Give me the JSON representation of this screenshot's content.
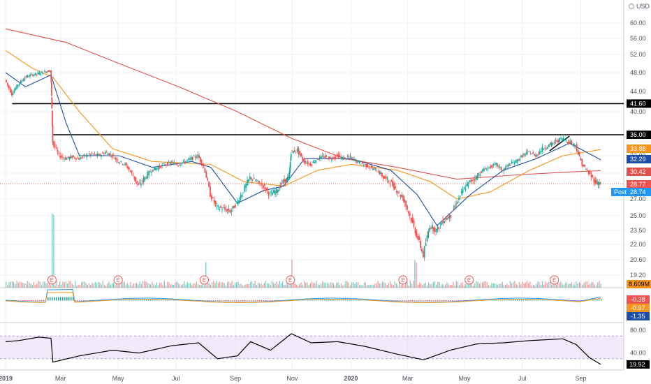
{
  "header": {
    "currency": "USD"
  },
  "colors": {
    "up": "#26a69a",
    "down": "#ef5350",
    "ma_fast": "#1e4fa8",
    "ma_mid": "#f7941d",
    "ma_slow": "#e0504a",
    "rsi": "#000000",
    "rsi_band": "#e8dcf7",
    "grid": "#eef0f3",
    "volume_ma": "#f7941d",
    "last_price": "#ef5350",
    "post_tag": "#2196f3"
  },
  "chart_data": [
    {
      "type": "candlestick",
      "pane": "price",
      "price_scale": [
        "60.00",
        "56.00",
        "52.00",
        "48.00",
        "44.00",
        "40.00",
        "36.00",
        "33.00",
        "30.00",
        "27.00",
        "25.00",
        "23.50",
        "22.00",
        "20.60",
        "19.20"
      ],
      "x_labels": [
        "2019",
        "Mar",
        "May",
        "Jul",
        "Sep",
        "Nov",
        "2020",
        "Mar",
        "May",
        "Jul",
        "Sep"
      ],
      "horizontal_levels": [
        {
          "label": "41.60",
          "value": 41.6
        },
        {
          "label": "36.00",
          "value": 36.0
        }
      ],
      "price_tags": [
        {
          "label": "33.88",
          "series": "ma_mid"
        },
        {
          "label": "32.29",
          "series": "ma_fast"
        },
        {
          "label": "30.42",
          "series": "ma_slow"
        },
        {
          "label": "28.77",
          "series": "last"
        },
        {
          "label": "28.74",
          "series": "post",
          "prefix": "Post"
        }
      ],
      "earnings_marker": "E",
      "earnings_dates": [
        "2019-02-20",
        "2019-05-01",
        "2019-07-31",
        "2019-10-30",
        "2020-02-26",
        "2020-05-06",
        "2020-08-04"
      ],
      "closes": [
        [
          [
            "2019-01-02",
            46.5
          ],
          [
            "2019-01-09",
            43.5
          ],
          [
            "2019-01-16",
            45.5
          ],
          [
            "2019-01-23",
            47.0
          ],
          [
            "2019-01-30",
            47.5
          ],
          [
            "2019-02-06",
            47.8
          ],
          [
            "2019-02-13",
            48.2
          ],
          [
            "2019-02-19",
            48.5
          ],
          [
            "2019-02-21",
            35.0
          ],
          [
            "2019-02-28",
            33.0
          ],
          [
            "2019-03-07",
            32.5
          ],
          [
            "2019-03-14",
            32.8
          ],
          [
            "2019-03-21",
            32.5
          ],
          [
            "2019-03-28",
            33.0
          ],
          [
            "2019-04-04",
            33.2
          ],
          [
            "2019-04-11",
            33.0
          ],
          [
            "2019-04-18",
            33.5
          ],
          [
            "2019-04-25",
            33.0
          ],
          [
            "2019-05-02",
            32.0
          ],
          [
            "2019-05-09",
            31.5
          ],
          [
            "2019-05-16",
            30.0
          ],
          [
            "2019-05-23",
            28.5
          ],
          [
            "2019-05-30",
            29.5
          ],
          [
            "2019-06-06",
            30.5
          ],
          [
            "2019-06-13",
            31.0
          ],
          [
            "2019-06-20",
            31.5
          ],
          [
            "2019-06-27",
            31.8
          ],
          [
            "2019-07-04",
            31.5
          ],
          [
            "2019-07-11",
            32.0
          ],
          [
            "2019-07-18",
            32.5
          ],
          [
            "2019-07-25",
            33.0
          ],
          [
            "2019-07-31",
            31.0
          ],
          [
            "2019-08-07",
            27.5
          ],
          [
            "2019-08-14",
            26.0
          ],
          [
            "2019-08-21",
            25.8
          ],
          [
            "2019-08-28",
            25.5
          ],
          [
            "2019-09-04",
            26.5
          ],
          [
            "2019-09-11",
            28.0
          ],
          [
            "2019-09-18",
            29.5
          ],
          [
            "2019-09-25",
            29.0
          ],
          [
            "2019-10-02",
            28.5
          ],
          [
            "2019-10-09",
            27.5
          ],
          [
            "2019-10-16",
            28.0
          ],
          [
            "2019-10-23",
            29.0
          ],
          [
            "2019-10-29",
            29.5
          ],
          [
            "2019-10-31",
            33.5
          ],
          [
            "2019-11-07",
            33.8
          ],
          [
            "2019-11-14",
            32.0
          ],
          [
            "2019-11-21",
            31.5
          ],
          [
            "2019-11-28",
            32.5
          ],
          [
            "2019-12-05",
            32.8
          ],
          [
            "2019-12-12",
            32.5
          ],
          [
            "2019-12-19",
            33.0
          ],
          [
            "2019-12-26",
            32.5
          ],
          [
            "2020-01-02",
            32.8
          ],
          [
            "2020-01-09",
            32.0
          ],
          [
            "2020-01-16",
            31.5
          ],
          [
            "2020-01-23",
            31.0
          ],
          [
            "2020-01-30",
            30.5
          ],
          [
            "2020-02-06",
            29.5
          ],
          [
            "2020-02-13",
            29.0
          ],
          [
            "2020-02-20",
            28.0
          ],
          [
            "2020-02-27",
            27.0
          ],
          [
            "2020-03-05",
            25.0
          ],
          [
            "2020-03-12",
            23.0
          ],
          [
            "2020-03-19",
            21.0
          ],
          [
            "2020-03-26",
            24.0
          ],
          [
            "2020-04-02",
            23.5
          ],
          [
            "2020-04-09",
            24.5
          ],
          [
            "2020-04-16",
            25.0
          ],
          [
            "2020-04-23",
            26.5
          ],
          [
            "2020-04-30",
            28.0
          ],
          [
            "2020-05-07",
            29.0
          ],
          [
            "2020-05-14",
            29.5
          ],
          [
            "2020-05-21",
            30.5
          ],
          [
            "2020-05-28",
            31.0
          ],
          [
            "2020-06-04",
            31.5
          ],
          [
            "2020-06-11",
            30.5
          ],
          [
            "2020-06-18",
            31.5
          ],
          [
            "2020-06-25",
            32.0
          ],
          [
            "2020-07-02",
            33.0
          ],
          [
            "2020-07-09",
            33.5
          ],
          [
            "2020-07-16",
            33.0
          ],
          [
            "2020-07-23",
            34.0
          ],
          [
            "2020-07-30",
            34.5
          ],
          [
            "2020-08-06",
            35.0
          ],
          [
            "2020-08-13",
            35.5
          ],
          [
            "2020-08-20",
            35.0
          ],
          [
            "2020-08-27",
            34.5
          ],
          [
            "2020-09-03",
            31.5
          ],
          [
            "2020-09-10",
            30.0
          ],
          [
            "2020-09-17",
            29.0
          ],
          [
            "2020-09-22",
            28.77
          ]
        ]
      ],
      "ma_fast": [
        [
          [
            "2019-01-02",
            48.0
          ],
          [
            "2019-01-23",
            45.0
          ],
          [
            "2019-02-19",
            47.5
          ],
          [
            "2019-03-07",
            38.0
          ],
          [
            "2019-03-21",
            33.0
          ],
          [
            "2019-05-02",
            33.0
          ],
          [
            "2019-06-06",
            31.0
          ],
          [
            "2019-07-18",
            32.0
          ],
          [
            "2019-08-07",
            31.0
          ],
          [
            "2019-09-04",
            26.5
          ],
          [
            "2019-10-02",
            28.0
          ],
          [
            "2019-10-23",
            28.5
          ],
          [
            "2019-11-14",
            32.5
          ],
          [
            "2020-01-02",
            32.5
          ],
          [
            "2020-02-13",
            30.5
          ],
          [
            "2020-03-12",
            27.5
          ],
          [
            "2020-04-02",
            24.0
          ],
          [
            "2020-05-07",
            27.5
          ],
          [
            "2020-06-11",
            30.5
          ],
          [
            "2020-07-16",
            32.5
          ],
          [
            "2020-08-20",
            34.8
          ],
          [
            "2020-09-22",
            32.29
          ]
        ]
      ],
      "ma_mid": [
        [
          [
            "2019-01-02",
            53.0
          ],
          [
            "2019-01-30",
            49.0
          ],
          [
            "2019-02-21",
            47.0
          ],
          [
            "2019-03-21",
            40.0
          ],
          [
            "2019-04-25",
            34.0
          ],
          [
            "2019-06-06",
            32.0
          ],
          [
            "2019-08-07",
            31.5
          ],
          [
            "2019-09-11",
            29.0
          ],
          [
            "2019-10-23",
            28.5
          ],
          [
            "2019-11-28",
            30.5
          ],
          [
            "2020-01-02",
            31.5
          ],
          [
            "2020-02-20",
            30.5
          ],
          [
            "2020-03-26",
            29.0
          ],
          [
            "2020-04-23",
            27.0
          ],
          [
            "2020-05-28",
            27.8
          ],
          [
            "2020-07-09",
            30.5
          ],
          [
            "2020-08-13",
            33.0
          ],
          [
            "2020-09-22",
            33.88
          ]
        ]
      ],
      "ma_slow": [
        [
          [
            "2019-01-02",
            58.5
          ],
          [
            "2019-03-07",
            55.0
          ],
          [
            "2019-05-02",
            50.0
          ],
          [
            "2019-07-04",
            45.0
          ],
          [
            "2019-09-04",
            40.0
          ],
          [
            "2019-10-31",
            35.5
          ],
          [
            "2019-12-26",
            32.5
          ],
          [
            "2020-02-20",
            31.0
          ],
          [
            "2020-04-23",
            29.3
          ],
          [
            "2020-06-25",
            29.8
          ],
          [
            "2020-08-20",
            30.2
          ],
          [
            "2020-09-22",
            30.42
          ]
        ]
      ]
    },
    {
      "type": "bar",
      "pane": "volume",
      "ticks": [],
      "last_value_label": "8.609M",
      "note": "volume histogram; tallest spike at 2019-02-21 earnings gap"
    },
    {
      "type": "line",
      "pane": "macd",
      "last_values": [
        {
          "label": "-0.38",
          "series": "histogram"
        },
        {
          "label": "-0.97",
          "series": "signal"
        },
        {
          "label": "-1.35",
          "series": "macd"
        }
      ]
    },
    {
      "type": "line",
      "pane": "rsi",
      "ticks": [
        "80.00",
        "40.00"
      ],
      "band": [
        30,
        70
      ],
      "last_value_label": "19.92",
      "values": [
        [
          "2019-01-02",
          60
        ],
        [
          "2019-01-16",
          62
        ],
        [
          "2019-02-06",
          68
        ],
        [
          "2019-02-19",
          66
        ],
        [
          "2019-02-21",
          24
        ],
        [
          "2019-03-21",
          35
        ],
        [
          "2019-04-25",
          45
        ],
        [
          "2019-05-23",
          40
        ],
        [
          "2019-06-27",
          53
        ],
        [
          "2019-07-25",
          58
        ],
        [
          "2019-08-14",
          30
        ],
        [
          "2019-09-04",
          35
        ],
        [
          "2019-09-18",
          60
        ],
        [
          "2019-10-09",
          45
        ],
        [
          "2019-10-31",
          74
        ],
        [
          "2019-11-21",
          58
        ],
        [
          "2019-12-19",
          60
        ],
        [
          "2020-01-16",
          52
        ],
        [
          "2020-02-20",
          38
        ],
        [
          "2020-03-19",
          28
        ],
        [
          "2020-04-16",
          45
        ],
        [
          "2020-05-14",
          56
        ],
        [
          "2020-06-11",
          58
        ],
        [
          "2020-07-09",
          62
        ],
        [
          "2020-08-13",
          65
        ],
        [
          "2020-08-27",
          55
        ],
        [
          "2020-09-10",
          32
        ],
        [
          "2020-09-22",
          19.92
        ]
      ]
    }
  ]
}
